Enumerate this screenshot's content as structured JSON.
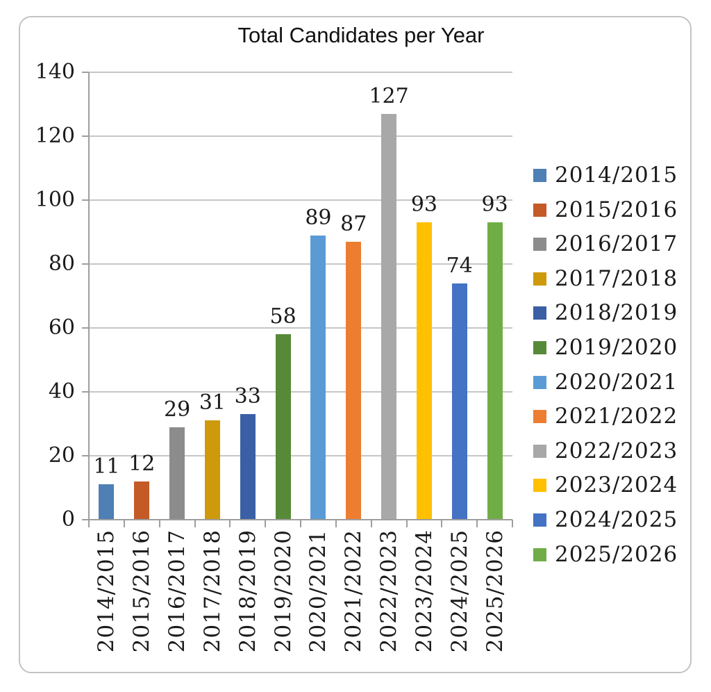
{
  "title": "Total Candidates per Year",
  "chart_data": {
    "type": "bar",
    "title": "Total Candidates per Year",
    "categories": [
      "2014/2015",
      "2015/2016",
      "2016/2017",
      "2017/2018",
      "2018/2019",
      "2019/2020",
      "2020/2021",
      "2021/2022",
      "2022/2023",
      "2023/2024",
      "2024/2025",
      "2025/2026"
    ],
    "values": [
      11,
      12,
      29,
      31,
      33,
      58,
      89,
      87,
      127,
      93,
      74,
      93
    ],
    "data_labels": [
      "11",
      "12",
      "29",
      "31",
      "33",
      "58",
      "89",
      "87",
      "127",
      "93",
      "74",
      "93"
    ],
    "bar_colors": [
      "#4E7FB5",
      "#C45A26",
      "#8C8C8C",
      "#CE9A0B",
      "#3A5FA5",
      "#578A38",
      "#5B9BD5",
      "#ED7D31",
      "#A8A8A8",
      "#FFC000",
      "#4472C4",
      "#70AD47"
    ],
    "xlabel": "",
    "ylabel": "",
    "ylim": [
      0,
      140
    ],
    "yticks": [
      0,
      20,
      40,
      60,
      80,
      100,
      120,
      140
    ],
    "ytick_labels": [
      "0",
      "20",
      "40",
      "60",
      "80",
      "100",
      "120",
      "140"
    ],
    "grid": true,
    "legend_position": "right",
    "legend_entries": [
      {
        "label": "2014/2015",
        "color": "#4E7FB5"
      },
      {
        "label": "2015/2016",
        "color": "#C45A26"
      },
      {
        "label": "2016/2017",
        "color": "#8C8C8C"
      },
      {
        "label": "2017/2018",
        "color": "#CE9A0B"
      },
      {
        "label": "2018/2019",
        "color": "#3A5FA5"
      },
      {
        "label": "2019/2020",
        "color": "#578A38"
      },
      {
        "label": "2020/2021",
        "color": "#5B9BD5"
      },
      {
        "label": "2021/2022",
        "color": "#ED7D31"
      },
      {
        "label": "2022/2023",
        "color": "#A8A8A8"
      },
      {
        "label": "2023/2024",
        "color": "#FFC000"
      },
      {
        "label": "2024/2025",
        "color": "#4472C4"
      },
      {
        "label": "2025/2026",
        "color": "#70AD47"
      }
    ]
  },
  "colors": {
    "background": "#FFFFFF",
    "card_border": "#C3C3C3",
    "gridline": "#C6C6C6",
    "axis": "#9E9E9E",
    "text": "#1A1A1A"
  }
}
